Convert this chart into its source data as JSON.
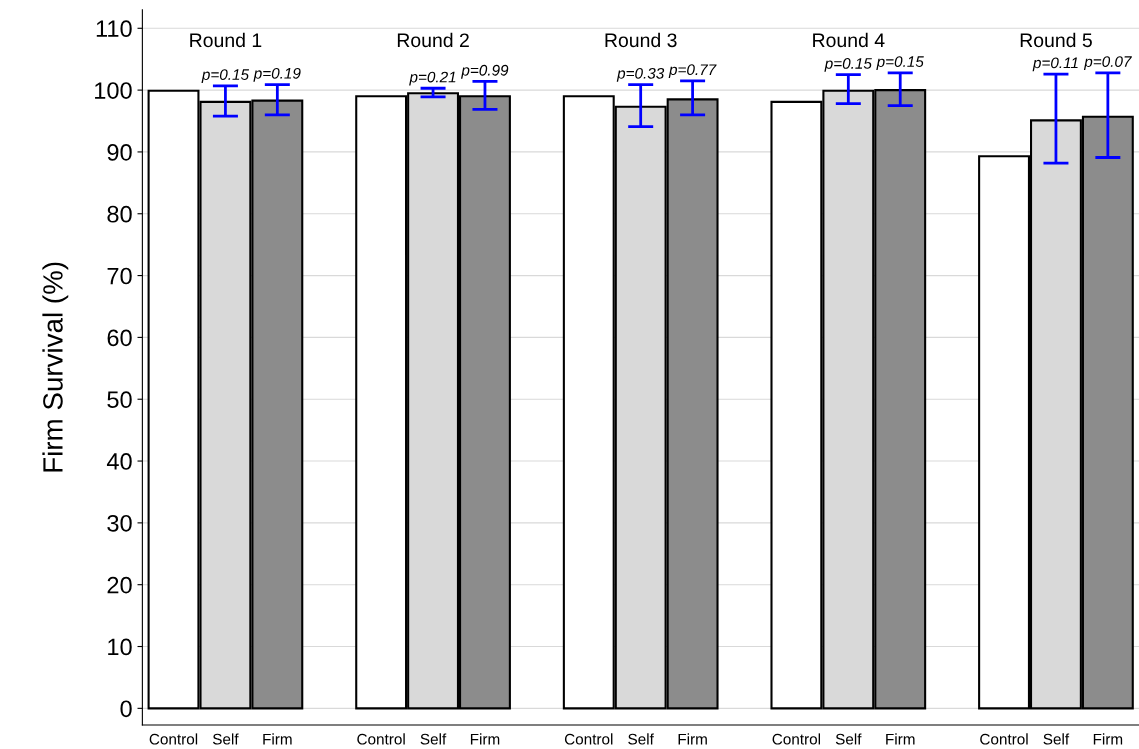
{
  "chart_data": {
    "type": "bar",
    "ylabel": "Firm Survival (%)",
    "categories": [
      "Control",
      "Self",
      "Firm",
      null,
      "Control",
      "Self",
      "Firm",
      null,
      "Control",
      "Self",
      "Firm",
      null,
      "Control",
      "Self",
      "Firm",
      null,
      "Control",
      "Self",
      "Firm"
    ],
    "values": [
      99.9,
      98.1,
      98.3,
      null,
      99.0,
      99.5,
      99.0,
      null,
      99.0,
      97.3,
      98.5,
      null,
      98.1,
      99.9,
      100.0,
      null,
      89.3,
      95.1,
      95.7
    ],
    "colors": [
      "#ffffff",
      "#d9d9d9",
      "#8c8c8c",
      null,
      "#ffffff",
      "#d9d9d9",
      "#8c8c8c",
      null,
      "#ffffff",
      "#d9d9d9",
      "#8c8c8c",
      null,
      "#ffffff",
      "#d9d9d9",
      "#8c8c8c",
      null,
      "#ffffff",
      "#d9d9d9",
      "#8c8c8c"
    ],
    "errors": [
      null,
      [
        95.8,
        100.7
      ],
      [
        96.0,
        100.9
      ],
      null,
      null,
      [
        98.9,
        100.3
      ],
      [
        96.9,
        101.4
      ],
      null,
      null,
      [
        94.1,
        100.9
      ],
      [
        96.0,
        101.5
      ],
      null,
      null,
      [
        97.8,
        102.5
      ],
      [
        97.5,
        102.8
      ],
      null,
      null,
      [
        88.2,
        102.6
      ],
      [
        89.1,
        102.8
      ]
    ],
    "annotations": [
      "Round 1",
      "Round 2",
      "Round 3",
      "Round 4",
      "Round 5",
      "p=0.15",
      "p=0.19",
      "p=0.21",
      "p=0.99",
      "p=0.33",
      "p=0.77",
      "p=0.15",
      "p=0.15",
      "p=0.11",
      "p=0.07"
    ],
    "ylim": [
      -2.7,
      113
    ],
    "yticks": [
      0,
      10,
      20,
      30,
      40,
      50,
      60,
      70,
      80,
      90,
      100,
      110
    ],
    "grid": "y"
  }
}
